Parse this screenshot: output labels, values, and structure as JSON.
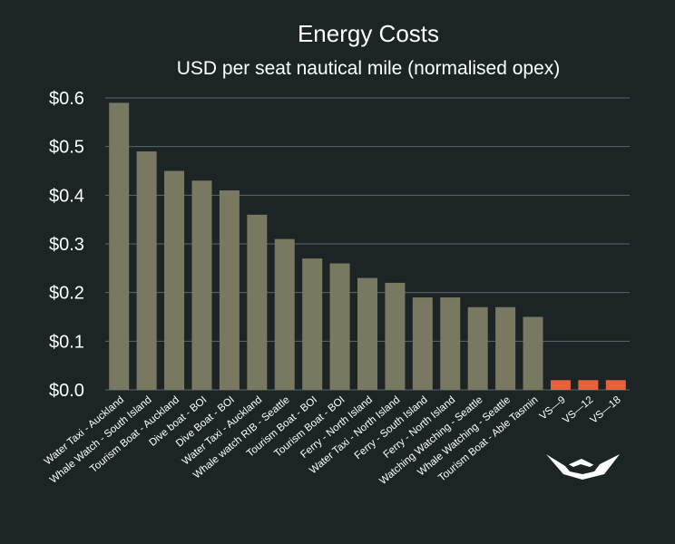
{
  "chart_data": {
    "type": "bar",
    "title": "Energy Costs",
    "subtitle": "USD per seat nautical mile (normalised opex)",
    "xlabel": "",
    "ylabel": "",
    "ylim": [
      0,
      0.6
    ],
    "yticks": [
      "$0.0",
      "$0.1",
      "$0.2",
      "$0.3",
      "$0.4",
      "$0.5",
      "$0.6"
    ],
    "grid": true,
    "categories": [
      "Water Taxi - Auckland",
      "Whale Watch - South Island",
      "Tourism Boat - Auckland",
      "Dive boat - BOI",
      "Dive Boat - BOI",
      "Water Taxi - Auckland",
      "Whale watch RIB - Seattle",
      "Tourism Boat - BOI",
      "Tourism Boat - BOI",
      "Ferry - North Island",
      "Water Taxi - North Island",
      "Ferry - South Island",
      "Ferry - North Island",
      "Watching Watching - Seattle",
      "Whale Watching - Seattle",
      "Tourism Boat - Able Tasmin",
      "VS—9",
      "VS—12",
      "VS—18"
    ],
    "values": [
      0.59,
      0.49,
      0.45,
      0.43,
      0.41,
      0.36,
      0.31,
      0.27,
      0.26,
      0.23,
      0.22,
      0.19,
      0.19,
      0.17,
      0.17,
      0.15,
      0.02,
      0.02,
      0.02
    ],
    "bar_colors": [
      "#797962",
      "#797962",
      "#797962",
      "#797962",
      "#797962",
      "#797962",
      "#797962",
      "#797962",
      "#797962",
      "#797962",
      "#797962",
      "#797962",
      "#797962",
      "#797962",
      "#797962",
      "#797962",
      "#e8613c",
      "#e8613c",
      "#e8613c"
    ]
  },
  "colors": {
    "background": "#1c2426",
    "text": "#ffffff",
    "gridline": "#5a6668",
    "competitor_bar": "#797962",
    "highlight_bar": "#e8613c"
  },
  "logo": {
    "name": "vessel-logo-icon",
    "color": "#ffffff"
  }
}
